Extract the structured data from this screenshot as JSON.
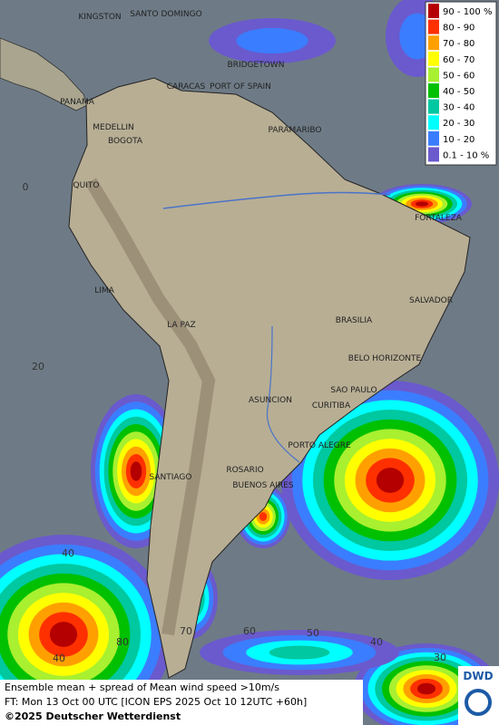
{
  "map": {
    "cities": [
      "KINGSTON",
      "SANTO DOMINGO",
      "BRIDGETOWN",
      "CARACAS",
      "PORT OF SPAIN",
      "PANAMA",
      "MEDELLIN",
      "BOGOTA",
      "PARAMARIBO",
      "QUITO",
      "FORTALEZA",
      "LIMA",
      "SALVADOR",
      "BRASILIA",
      "LA PAZ",
      "BELO HORIZONTE",
      "SAO PAULO",
      "ASUNCION",
      "CURITIBA",
      "PORTO ALEGRE",
      "ROSARIO",
      "SANTIAGO",
      "BUENOS AIRES"
    ],
    "grid_labels": [
      "0",
      "20",
      "40",
      "80",
      "70",
      "60",
      "50",
      "40",
      "30",
      "40"
    ],
    "legend": [
      "90 - 100 %",
      "80 - 90",
      "70 - 80",
      "60 - 70",
      "50 - 60",
      "40 - 50",
      "30 - 40",
      "20 - 30",
      "10 - 20",
      "0.1 - 10 %"
    ],
    "footer": [
      "Ensemble mean + spread of Mean wind speed >10m/s",
      "FT: Mon 13 Oct 00 UTC [ICON EPS 2025 Oct 10 12UTC +60h]",
      "©2025 Deutscher Wetterdienst"
    ],
    "logo": "DWD"
  }
}
